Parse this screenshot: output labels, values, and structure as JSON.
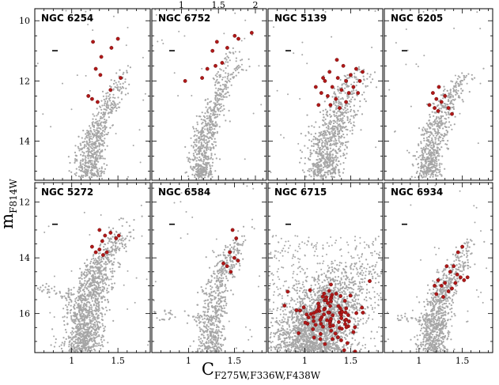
{
  "figure": {
    "ylabel_main": "m",
    "ylabel_sub": "F814W",
    "xlabel_main": "C",
    "xlabel_sub": "F275W,F336W,F438W",
    "colors": {
      "grey": "#a6a6a6",
      "red": "#b01818"
    }
  },
  "chart_data": [
    {
      "type": "scatter",
      "title": "NGC 6254",
      "xlim": [
        0.6,
        1.85
      ],
      "ylim": [
        15.3,
        9.6
      ],
      "top_ticks": [],
      "bottom_ticks": [],
      "left_ticks": [
        "10",
        "12",
        "14"
      ],
      "rgb": {
        "base_x": 1.22,
        "base_y": 15.2,
        "tip_x": 1.65,
        "tip_y": 11.8,
        "width": 0.06
      },
      "agb": {
        "x0": 1.35,
        "y0": 12.8,
        "x1": 1.6,
        "y1": 11.5
      },
      "red": [
        [
          1.23,
          10.7
        ],
        [
          1.32,
          11.2
        ],
        [
          1.26,
          11.6
        ],
        [
          1.31,
          11.8
        ],
        [
          1.18,
          12.5
        ],
        [
          1.22,
          12.6
        ],
        [
          1.28,
          12.7
        ],
        [
          1.42,
          12.3
        ],
        [
          1.53,
          11.9
        ],
        [
          1.5,
          10.6
        ],
        [
          1.43,
          10.9
        ]
      ],
      "n_grey": 420
    },
    {
      "type": "scatter",
      "title": "NGC 6752",
      "xlim": [
        0.6,
        2.15
      ],
      "ylim": [
        15.3,
        9.6
      ],
      "top_ticks": [
        "1",
        "1.5",
        "2"
      ],
      "bottom_ticks": [],
      "left_ticks": [],
      "rgb": {
        "base_x": 1.3,
        "base_y": 15.2,
        "tip_x": 1.9,
        "tip_y": 11.0,
        "width": 0.07
      },
      "agb": {
        "x0": 1.4,
        "y0": 12.4,
        "x1": 1.7,
        "y1": 11.0
      },
      "red": [
        [
          1.05,
          12.0
        ],
        [
          1.28,
          11.9
        ],
        [
          1.35,
          11.6
        ],
        [
          1.46,
          11.5
        ],
        [
          1.55,
          11.4
        ],
        [
          1.62,
          10.9
        ],
        [
          1.72,
          10.5
        ],
        [
          1.77,
          10.6
        ],
        [
          1.95,
          10.4
        ],
        [
          1.48,
          10.7
        ],
        [
          1.42,
          11.0
        ]
      ],
      "n_grey": 480
    },
    {
      "type": "scatter",
      "title": "NGC 5139",
      "xlim": [
        0.6,
        1.85
      ],
      "ylim": [
        15.3,
        9.6
      ],
      "top_ticks": [],
      "bottom_ticks": [],
      "left_ticks": [],
      "rgb": {
        "base_x": 1.25,
        "base_y": 15.2,
        "tip_x": 1.68,
        "tip_y": 11.6,
        "width": 0.1
      },
      "agb": {
        "x0": 1.3,
        "y0": 12.6,
        "x1": 1.6,
        "y1": 11.5
      },
      "red": [
        [
          1.12,
          12.2
        ],
        [
          1.18,
          12.4
        ],
        [
          1.22,
          12.0
        ],
        [
          1.25,
          12.5
        ],
        [
          1.27,
          11.7
        ],
        [
          1.3,
          12.2
        ],
        [
          1.34,
          12.6
        ],
        [
          1.36,
          11.9
        ],
        [
          1.4,
          12.3
        ],
        [
          1.42,
          11.5
        ],
        [
          1.45,
          12.0
        ],
        [
          1.48,
          12.4
        ],
        [
          1.5,
          11.8
        ],
        [
          1.53,
          12.2
        ],
        [
          1.56,
          11.6
        ],
        [
          1.6,
          12.0
        ],
        [
          1.63,
          11.7
        ],
        [
          1.35,
          11.3
        ],
        [
          1.28,
          12.8
        ],
        [
          1.2,
          11.9
        ],
        [
          1.45,
          12.7
        ],
        [
          1.58,
          12.4
        ],
        [
          1.38,
          12.9
        ],
        [
          1.15,
          12.8
        ]
      ],
      "n_grey": 560
    },
    {
      "type": "scatter",
      "title": "NGC 6205",
      "xlim": [
        0.6,
        1.85
      ],
      "ylim": [
        15.3,
        9.6
      ],
      "top_ticks": [],
      "bottom_ticks": [],
      "left_ticks": [],
      "rgb": {
        "base_x": 1.15,
        "base_y": 15.2,
        "tip_x": 1.6,
        "tip_y": 11.4,
        "width": 0.07
      },
      "agb": {
        "x0": 1.28,
        "y0": 12.8,
        "x1": 1.55,
        "y1": 11.8
      },
      "red": [
        [
          1.12,
          12.8
        ],
        [
          1.16,
          12.4
        ],
        [
          1.2,
          12.6
        ],
        [
          1.23,
          12.2
        ],
        [
          1.26,
          12.7
        ],
        [
          1.3,
          12.5
        ],
        [
          1.34,
          12.9
        ],
        [
          1.22,
          13.0
        ],
        [
          1.38,
          13.1
        ],
        [
          1.18,
          12.9
        ]
      ],
      "n_grey": 430
    },
    {
      "type": "scatter",
      "title": "NGC 5272",
      "xlim": [
        0.6,
        1.85
      ],
      "ylim": [
        17.4,
        11.3
      ],
      "top_ticks": [],
      "bottom_ticks": [
        "1",
        "1.5"
      ],
      "left_ticks": [
        "12",
        "14",
        "16"
      ],
      "rgb": {
        "base_x": 1.15,
        "base_y": 17.4,
        "tip_x": 1.62,
        "tip_y": 12.5,
        "width": 0.09
      },
      "agb": {
        "x0": 1.3,
        "y0": 14.4,
        "x1": 1.55,
        "y1": 13.2
      },
      "hb": {
        "x0": 0.62,
        "x1": 1.0,
        "y": 15.1
      },
      "red": [
        [
          1.3,
          13.0
        ],
        [
          1.33,
          13.4
        ],
        [
          1.36,
          13.2
        ],
        [
          1.42,
          13.1
        ],
        [
          1.48,
          13.3
        ],
        [
          1.51,
          13.2
        ],
        [
          1.26,
          13.8
        ],
        [
          1.3,
          13.7
        ],
        [
          1.34,
          13.9
        ],
        [
          1.38,
          13.8
        ],
        [
          1.22,
          13.6
        ]
      ],
      "n_grey": 900
    },
    {
      "type": "scatter",
      "title": "NGC 6584",
      "xlim": [
        0.6,
        1.85
      ],
      "ylim": [
        17.4,
        11.3
      ],
      "top_ticks": [],
      "bottom_ticks": [
        "1",
        "1.5"
      ],
      "left_ticks": [],
      "rgb": {
        "base_x": 1.28,
        "base_y": 17.4,
        "tip_x": 1.6,
        "tip_y": 12.8,
        "width": 0.06
      },
      "agb": {
        "x0": 1.35,
        "y0": 14.6,
        "x1": 1.55,
        "y1": 13.4
      },
      "hb": {
        "x0": 0.62,
        "x1": 1.15,
        "y": 16.0
      },
      "red": [
        [
          1.48,
          13.0
        ],
        [
          1.52,
          13.3
        ],
        [
          1.45,
          13.8
        ],
        [
          1.5,
          14.0
        ],
        [
          1.54,
          14.1
        ],
        [
          1.42,
          14.3
        ],
        [
          1.38,
          14.2
        ],
        [
          1.46,
          14.5
        ]
      ],
      "n_grey": 430
    },
    {
      "type": "scatter",
      "title": "NGC 6715",
      "xlim": [
        0.6,
        1.85
      ],
      "ylim": [
        17.4,
        11.3
      ],
      "top_ticks": [],
      "bottom_ticks": [
        "1",
        "1.5"
      ],
      "left_ticks": [],
      "rgb": {
        "base_x": 1.1,
        "base_y": 17.4,
        "tip_x": 1.6,
        "tip_y": 14.0,
        "width": 0.2
      },
      "agb": {
        "x0": 1.1,
        "y0": 16.2,
        "x1": 1.6,
        "y1": 15.2
      },
      "red_cluster": {
        "cx": 1.28,
        "cy": 16.0,
        "sx": 0.18,
        "sy": 0.55,
        "n": 95
      },
      "red": [],
      "n_grey": 1400
    },
    {
      "type": "scatter",
      "title": "NGC 6934",
      "xlim": [
        0.6,
        1.85
      ],
      "ylim": [
        17.4,
        11.3
      ],
      "top_ticks": [],
      "bottom_ticks": [
        "1",
        "1.5"
      ],
      "left_ticks": [],
      "rgb": {
        "base_x": 1.2,
        "base_y": 17.4,
        "tip_x": 1.62,
        "tip_y": 13.2,
        "width": 0.07
      },
      "agb": {
        "x0": 1.3,
        "y0": 15.2,
        "x1": 1.55,
        "y1": 14.2
      },
      "hb": {
        "x0": 0.75,
        "x1": 1.15,
        "y": 16.1
      },
      "red": [
        [
          1.45,
          13.8
        ],
        [
          1.5,
          13.6
        ],
        [
          1.32,
          14.3
        ],
        [
          1.36,
          14.5
        ],
        [
          1.4,
          14.3
        ],
        [
          1.44,
          14.6
        ],
        [
          1.48,
          14.7
        ],
        [
          1.52,
          14.8
        ],
        [
          1.56,
          14.7
        ],
        [
          1.22,
          14.8
        ],
        [
          1.26,
          15.0
        ],
        [
          1.3,
          14.9
        ],
        [
          1.34,
          15.2
        ],
        [
          1.2,
          15.3
        ],
        [
          1.28,
          15.4
        ],
        [
          1.38,
          15.1
        ],
        [
          1.42,
          14.9
        ],
        [
          1.18,
          15.0
        ]
      ],
      "n_grey": 560
    }
  ]
}
